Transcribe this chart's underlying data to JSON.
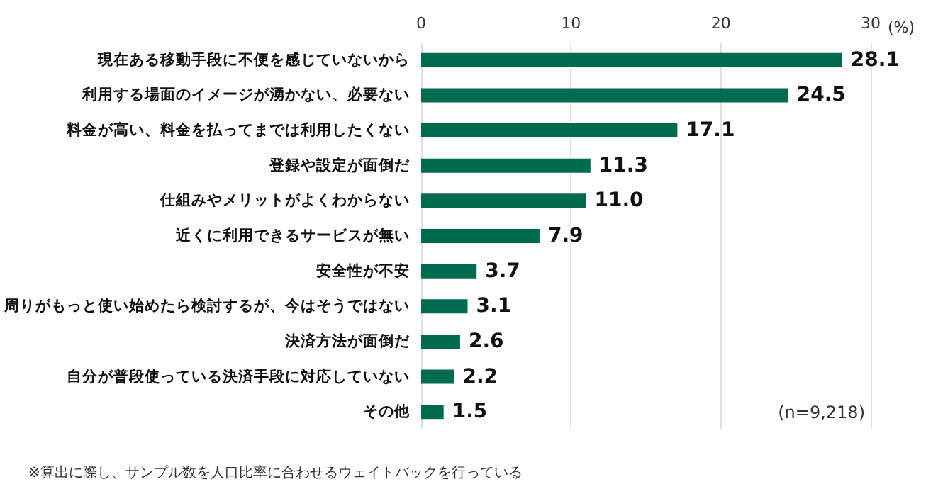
{
  "chart_data": {
    "type": "bar",
    "orientation": "horizontal",
    "xlabel": "(%)",
    "categories": [
      "現在ある移動手段に不便を感じていないから",
      "利用する場面のイメージが湧かない、必要ない",
      "料金が高い、料金を払ってまでは利用したくない",
      "登録や設定が面倒だ",
      "仕組みやメリットがよくわからない",
      "近くに利用できるサービスが無い",
      "安全性が不安",
      "周りがもっと使い始めたら検討するが、今はそうではない",
      "決済方法が面倒だ",
      "自分が普段使っている決済手段に対応していない",
      "その他"
    ],
    "values": [
      28.1,
      24.5,
      17.1,
      11.3,
      11.0,
      7.9,
      3.7,
      3.1,
      2.6,
      2.2,
      1.5
    ],
    "value_labels": [
      "28.1",
      "24.5",
      "17.1",
      "11.3",
      "11.0",
      "7.9",
      "3.7",
      "3.1",
      "2.6",
      "2.2",
      "1.5"
    ],
    "color": "#006b4f",
    "xlim": [
      0,
      30
    ],
    "xticks": [
      0,
      10,
      20,
      30
    ],
    "grid": "x",
    "annotations": [
      "(n=9,218)",
      "※算出に際し、サンプル数を人口比率に合わせるウェイトバックを行っている"
    ]
  }
}
